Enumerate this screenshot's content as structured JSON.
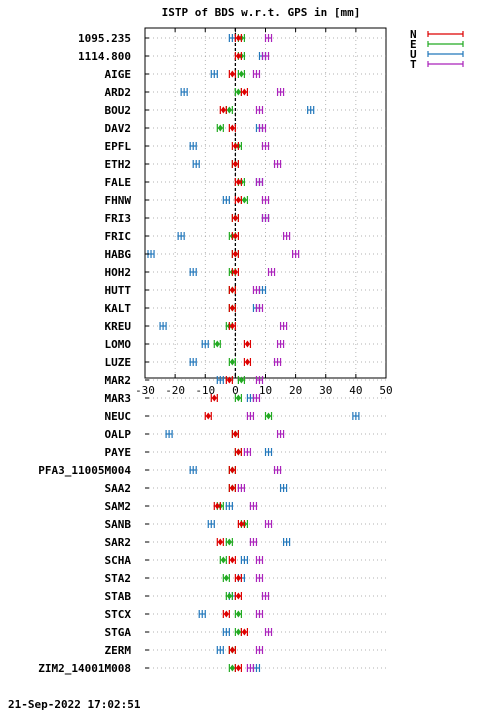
{
  "chart_data": {
    "type": "scatter",
    "title": "ISTP of BDS w.r.t. GPS in [mm]",
    "xlabel": "",
    "ylabel": "",
    "xlim": [
      -30,
      50
    ],
    "xticks": [
      -30,
      -20,
      -10,
      0,
      10,
      20,
      30,
      40,
      50
    ],
    "grid": true,
    "legend_position": "top-right",
    "reference_line_x": 0,
    "series": [
      {
        "name": "N",
        "color": "#dd0000"
      },
      {
        "name": "E",
        "color": "#22aa22"
      },
      {
        "name": "U",
        "color": "#2277bb"
      },
      {
        "name": "T",
        "color": "#aa22bb"
      }
    ],
    "categories": [
      "1095.235",
      "1114.800",
      "AIGE",
      "ARD2",
      "BOU2",
      "DAV2",
      "EPFL",
      "ETH2",
      "FALE",
      "FHNW",
      "FRI3",
      "FRIC",
      "HABG",
      "HOH2",
      "HUTT",
      "KALT",
      "KREU",
      "LOMO",
      "LUZE",
      "MAR2",
      "MAR3",
      "NEUC",
      "OALP",
      "PAYE",
      "PFA3_11005M004",
      "SAA2",
      "SAM2",
      "SANB",
      "SAR2",
      "SCHA",
      "STA2",
      "STAB",
      "STCX",
      "STGA",
      "ZERM",
      "ZIM2_14001M008"
    ],
    "N": [
      1,
      1,
      -1,
      3,
      -4,
      -1,
      0,
      0,
      1,
      1,
      0,
      0,
      0,
      0,
      -1,
      -1,
      -1,
      4,
      4,
      -2,
      -7,
      -9,
      0,
      1,
      -1,
      -1,
      -6,
      2,
      -5,
      -1,
      1,
      1,
      -3,
      3,
      -1,
      1
    ],
    "E": [
      2,
      2,
      2,
      1,
      -2,
      -5,
      1,
      0,
      2,
      3,
      0,
      -1,
      0,
      -1,
      -1,
      -1,
      -2,
      -6,
      -1,
      2,
      1,
      11,
      0,
      1,
      -1,
      -1,
      -5,
      3,
      -2,
      -4,
      -3,
      -2,
      1,
      1,
      -1,
      -1
    ],
    "U": [
      -1,
      9,
      -7,
      -17,
      25,
      8,
      -14,
      -13,
      8,
      -3,
      10,
      -18,
      -28,
      -14,
      9,
      7,
      -24,
      -10,
      -14,
      -5,
      5,
      40,
      -22,
      11,
      -14,
      16,
      -2,
      -8,
      17,
      3,
      2,
      -1,
      -11,
      -3,
      -5,
      7
    ],
    "T": [
      11,
      10,
      7,
      15,
      8,
      9,
      10,
      14,
      8,
      10,
      10,
      17,
      20,
      12,
      7,
      8,
      16,
      15,
      14,
      8,
      7,
      5,
      15,
      4,
      14,
      2,
      6,
      11,
      6,
      8,
      8,
      10,
      8,
      11,
      8,
      5
    ],
    "error": 1,
    "timestamp": "21-Sep-2022 17:02:51"
  }
}
